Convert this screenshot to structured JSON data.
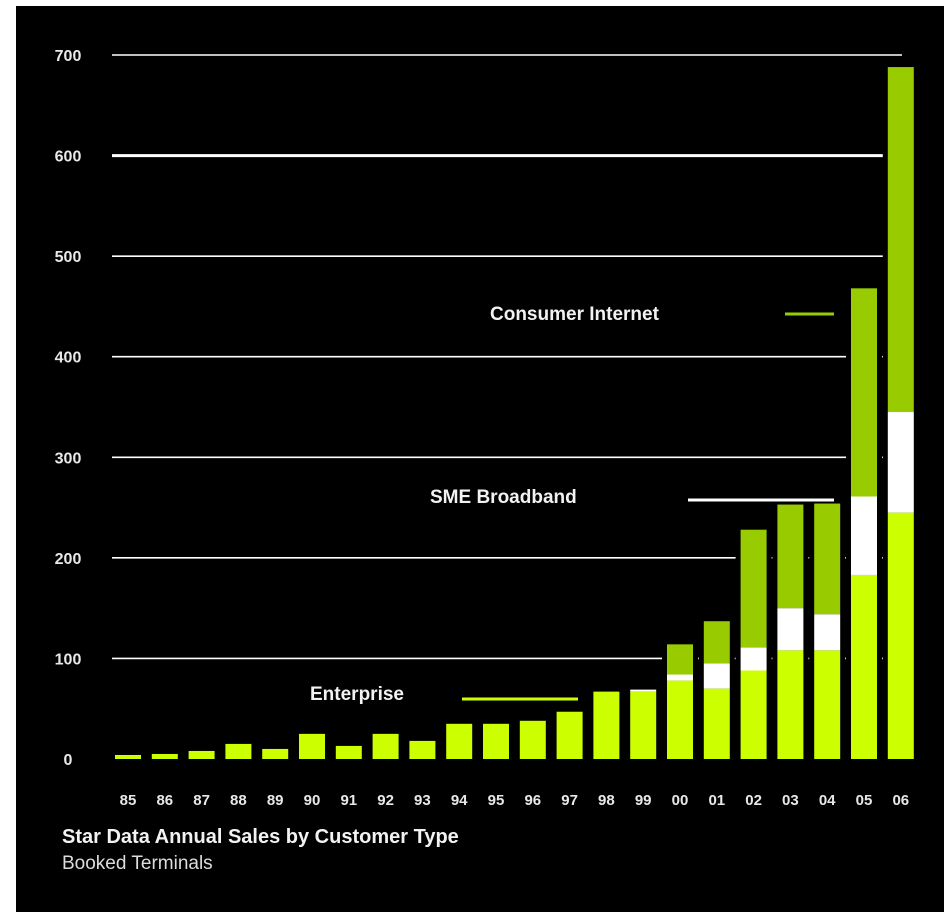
{
  "colors": {
    "background": "#000000",
    "enterprise": "#ccff00",
    "sme_broadband": "#ffffff",
    "consumer_internet": "#99cc00",
    "gridline": "#ffffff",
    "text": "#e8e8e8"
  },
  "chart_data": {
    "type": "bar",
    "stacked": true,
    "title": "Star Data Annual Sales by Customer Type",
    "subtitle": "Booked Terminals",
    "xlabel": "",
    "ylabel": "",
    "ylim": [
      0,
      700
    ],
    "yticks": [
      "0",
      "100",
      "200",
      "300",
      "400",
      "500",
      "600",
      "700"
    ],
    "grid": true,
    "legend": "none",
    "categories": [
      "85",
      "86",
      "87",
      "88",
      "89",
      "90",
      "91",
      "92",
      "93",
      "94",
      "95",
      "96",
      "97",
      "98",
      "99",
      "00",
      "01",
      "02",
      "03",
      "04",
      "05",
      "06"
    ],
    "series": [
      {
        "key": "enterprise",
        "values": [
          4,
          5,
          8,
          15,
          10,
          25,
          13,
          25,
          18,
          35,
          35,
          38,
          47,
          67,
          67,
          78,
          70,
          88,
          108,
          108,
          183,
          245
        ]
      },
      {
        "key": "sme_broadband",
        "values": [
          0,
          0,
          0,
          0,
          0,
          0,
          0,
          0,
          0,
          0,
          0,
          0,
          0,
          0,
          2,
          6,
          25,
          23,
          42,
          36,
          78,
          100
        ]
      },
      {
        "key": "consumer_internet",
        "values": [
          0,
          0,
          0,
          0,
          0,
          0,
          0,
          0,
          0,
          0,
          0,
          0,
          0,
          0,
          0,
          30,
          42,
          117,
          103,
          110,
          207,
          343
        ]
      }
    ],
    "annotations": [
      {
        "text": "Consumer Internet",
        "series": "consumer_internet"
      },
      {
        "text": "SME Broadband",
        "series": "sme_broadband"
      },
      {
        "text": "Enterprise",
        "series": "enterprise"
      }
    ]
  }
}
